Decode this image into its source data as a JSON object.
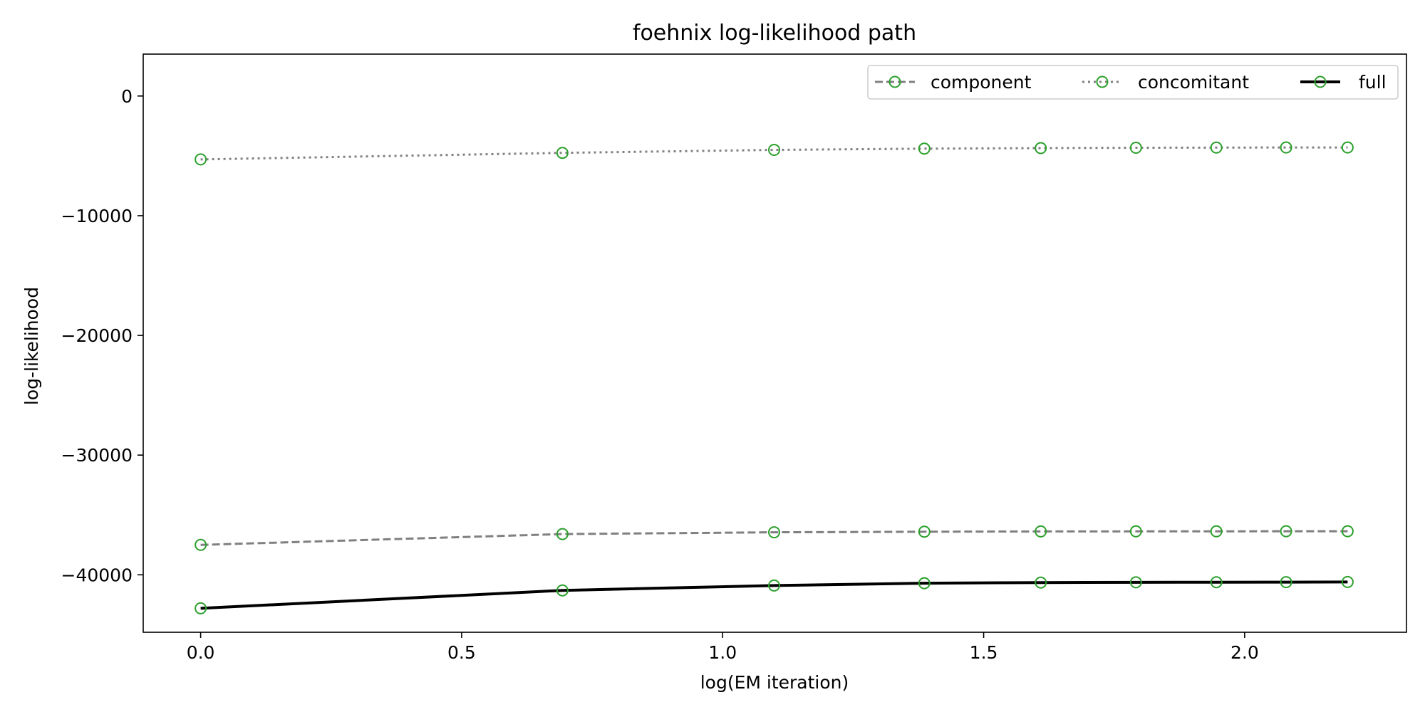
{
  "chart_data": {
    "type": "line",
    "title": "foehnix log-likelihood path",
    "xlabel": "log(EM iteration)",
    "ylabel": "log-likelihood",
    "x": [
      0.0,
      0.6931,
      1.0986,
      1.3863,
      1.6094,
      1.7918,
      1.9459,
      2.0794,
      2.1972
    ],
    "xlim": [
      -0.11,
      2.31
    ],
    "ylim": [
      -44800,
      3500
    ],
    "xticks": [
      0.0,
      0.5,
      1.0,
      1.5,
      2.0
    ],
    "xtick_labels": [
      "0.0",
      "0.5",
      "1.0",
      "1.5",
      "2.0"
    ],
    "yticks": [
      0,
      -10000,
      -20000,
      -30000,
      -40000
    ],
    "ytick_labels": [
      "0",
      "−10000",
      "−20000",
      "−30000",
      "−40000"
    ],
    "grid": false,
    "legend_position": "top-right",
    "marker_color": "#2ca02c",
    "series": [
      {
        "name": "component",
        "values": [
          -37500,
          -36600,
          -36450,
          -36400,
          -36380,
          -36370,
          -36370,
          -36360,
          -36360
        ],
        "line_color": "#808080",
        "line_style": "dashed"
      },
      {
        "name": "concomitant",
        "values": [
          -5300,
          -4750,
          -4500,
          -4400,
          -4350,
          -4320,
          -4310,
          -4300,
          -4300
        ],
        "line_color": "#808080",
        "line_style": "dotted"
      },
      {
        "name": "full",
        "values": [
          -42800,
          -41300,
          -40900,
          -40700,
          -40650,
          -40630,
          -40620,
          -40610,
          -40600
        ],
        "line_color": "#000000",
        "line_style": "solid"
      }
    ]
  }
}
